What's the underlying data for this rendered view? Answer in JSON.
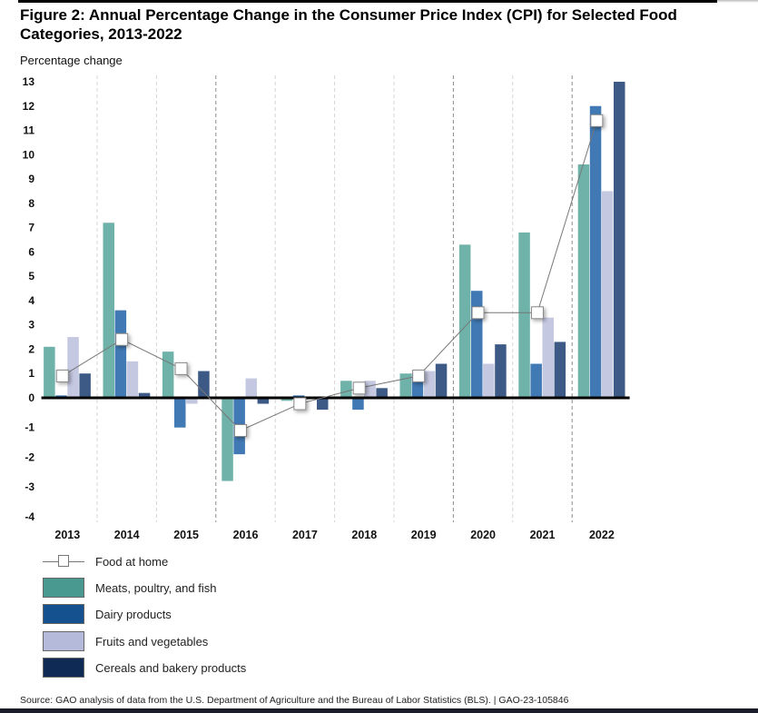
{
  "figure": {
    "title": "Figure 2: Annual Percentage Change in the Consumer Price Index (CPI) for Selected Food Categories, 2013-2022",
    "source": "Source: GAO analysis of data from the U.S. Department of Agriculture and the Bureau of Labor Statistics (BLS).  |  GAO-23-105846"
  },
  "chart_data": {
    "type": "bar",
    "title": "Annual Percentage Change in the Consumer Price Index (CPI) for Selected Food Categories, 2013-2022",
    "xlabel": "",
    "ylabel": "Percentage change",
    "ylim": [
      -4,
      13
    ],
    "yticks": [
      13,
      12,
      11,
      10,
      9,
      8,
      7,
      6,
      5,
      4,
      3,
      2,
      1,
      0,
      -1,
      -2,
      -3,
      -4
    ],
    "grid": false,
    "legend_position": "bottom-left",
    "categories": [
      "2013",
      "2014",
      "2015",
      "2016",
      "2017",
      "2018",
      "2019",
      "2020",
      "2021",
      "2022"
    ],
    "series": [
      {
        "name": "Meats, poultry, and fish",
        "type": "bar",
        "bar_color": "#6fb2a9",
        "legend_color": "#4a9990",
        "values": [
          2.1,
          7.2,
          1.9,
          -2.8,
          -0.1,
          0.7,
          1.0,
          6.3,
          6.8,
          9.6
        ]
      },
      {
        "name": "Dairy products",
        "type": "bar",
        "bar_color": "#4079b4",
        "legend_color": "#15508f",
        "values": [
          0.1,
          3.6,
          -1.0,
          -1.9,
          0.1,
          -0.4,
          1.0,
          4.4,
          1.4,
          12.0
        ]
      },
      {
        "name": "Fruits and vegetables",
        "type": "bar",
        "bar_color": "#c5c8e1",
        "legend_color": "#b5b9da",
        "values": [
          2.5,
          1.5,
          -0.2,
          0.8,
          0.0,
          0.7,
          1.1,
          1.4,
          3.3,
          8.5
        ]
      },
      {
        "name": "Cereals and bakery products",
        "type": "bar",
        "bar_color": "#3d5a86",
        "legend_color": "#0f2a55",
        "values": [
          1.0,
          0.2,
          1.1,
          -0.2,
          -0.4,
          0.4,
          1.4,
          2.2,
          2.3,
          13.0
        ]
      },
      {
        "name": "Food at home",
        "type": "line",
        "line_color": "#777777",
        "values": [
          0.9,
          2.4,
          1.2,
          -1.1,
          -0.2,
          0.4,
          0.9,
          3.5,
          3.5,
          11.4
        ]
      }
    ],
    "legend": [
      {
        "label": "Food at home",
        "kind": "line-marker"
      },
      {
        "label": "Meats, poultry, and fish",
        "kind": "swatch",
        "color": "#4a9990"
      },
      {
        "label": "Dairy products",
        "kind": "swatch",
        "color": "#15508f"
      },
      {
        "label": "Fruits and vegetables",
        "kind": "swatch",
        "color": "#b5b9da"
      },
      {
        "label": "Cereals and bakery products",
        "kind": "swatch",
        "color": "#0f2a55"
      }
    ],
    "emphasized_separators_after": [
      "2015",
      "2019",
      "2021"
    ]
  }
}
